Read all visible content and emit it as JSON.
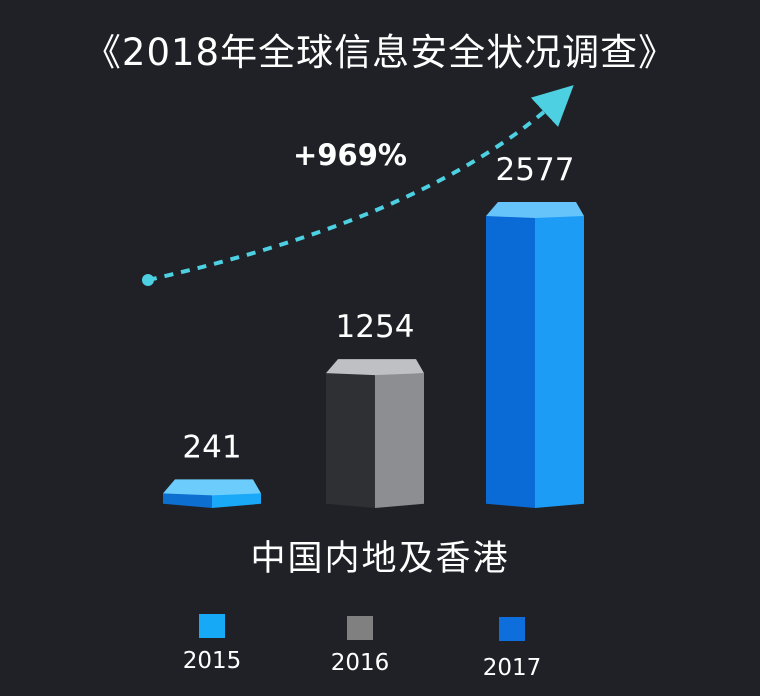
{
  "chart_data": {
    "type": "bar",
    "title": "《2018年全球信息安全状况调查》",
    "category_label": "中国内地及香港",
    "categories": [
      "2015",
      "2016",
      "2017"
    ],
    "values": [
      241,
      1254,
      2577
    ],
    "colors": [
      "#1c8ff0",
      "#4a4b4f",
      "#1689e8"
    ],
    "legend_colors": [
      "#16a9f5",
      "#808080",
      "#0d6edc"
    ],
    "annotation": "+969%",
    "trend_color": "#4dd0e1",
    "legend_position": "bottom"
  }
}
